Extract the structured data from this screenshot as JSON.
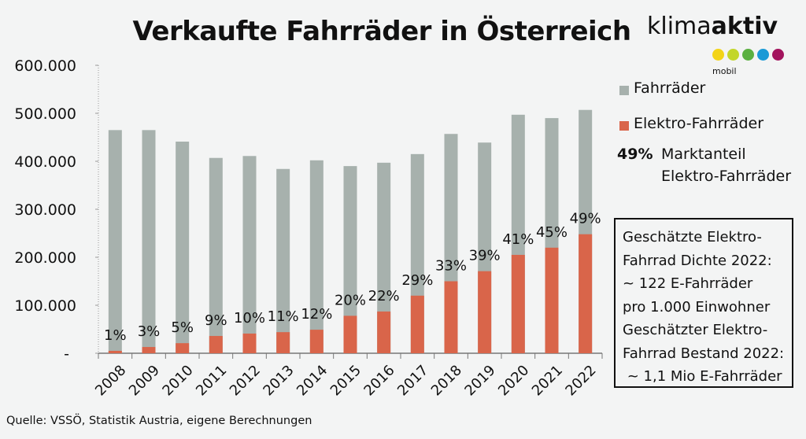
{
  "logo": {
    "text_light": "klima",
    "text_bold": "aktiv",
    "sub": "mobil",
    "dot_colors": [
      "#f3d417",
      "#c3d62a",
      "#5bb041",
      "#1a9ad6",
      "#a3145e"
    ]
  },
  "legend": {
    "total_label": "Fahrräder",
    "ebike_label": "Elektro-Fahrräder",
    "share_value": "49%",
    "share_label_line1": "Marktanteil",
    "share_label_line2": "Elektro-Fahrräder"
  },
  "info_box": {
    "lines": [
      "Geschätzte Elektro-",
      "Fahrrad Dichte 2022:",
      "~ 122 E-Fahrräder",
      "pro 1.000 Einwohner",
      "Geschätzter Elektro-",
      "Fahrrad Bestand 2022:",
      " ~ 1,1 Mio E-Fahrräder"
    ]
  },
  "source": "Quelle: VSSÖ, Statistik Austria, eigene Berechnungen",
  "colors": {
    "total": "#a7b1ad",
    "ebike": "#d9654a"
  },
  "chart_data": {
    "type": "bar",
    "title": "Verkaufte Fahrräder in Österreich",
    "categories": [
      "2008",
      "2009",
      "2010",
      "2011",
      "2012",
      "2013",
      "2014",
      "2015",
      "2016",
      "2017",
      "2018",
      "2019",
      "2020",
      "2021",
      "2022"
    ],
    "series": [
      {
        "name": "Fahrräder",
        "values": [
          465000,
          465000,
          441000,
          407000,
          411000,
          384000,
          402000,
          390000,
          397000,
          415000,
          457000,
          439000,
          497000,
          490000,
          507000
        ]
      },
      {
        "name": "Elektro-Fahrräder",
        "values": [
          5000,
          13000,
          21000,
          36000,
          41000,
          44000,
          49000,
          78000,
          87000,
          120000,
          150000,
          171000,
          205000,
          220000,
          248000
        ]
      }
    ],
    "data_labels": [
      "1%",
      "3%",
      "5%",
      "9%",
      "10%",
      "11%",
      "12%",
      "20%",
      "22%",
      "29%",
      "33%",
      "39%",
      "41%",
      "45%",
      "49%"
    ],
    "yticks": [
      0,
      100000,
      200000,
      300000,
      400000,
      500000,
      600000
    ],
    "ytick_labels": [
      "-",
      "100.000",
      "200.000",
      "300.000",
      "400.000",
      "500.000",
      "600.000"
    ],
    "ylim": [
      0,
      600000
    ],
    "xlabel": "",
    "ylabel": "",
    "grid": false,
    "legend": "right"
  }
}
